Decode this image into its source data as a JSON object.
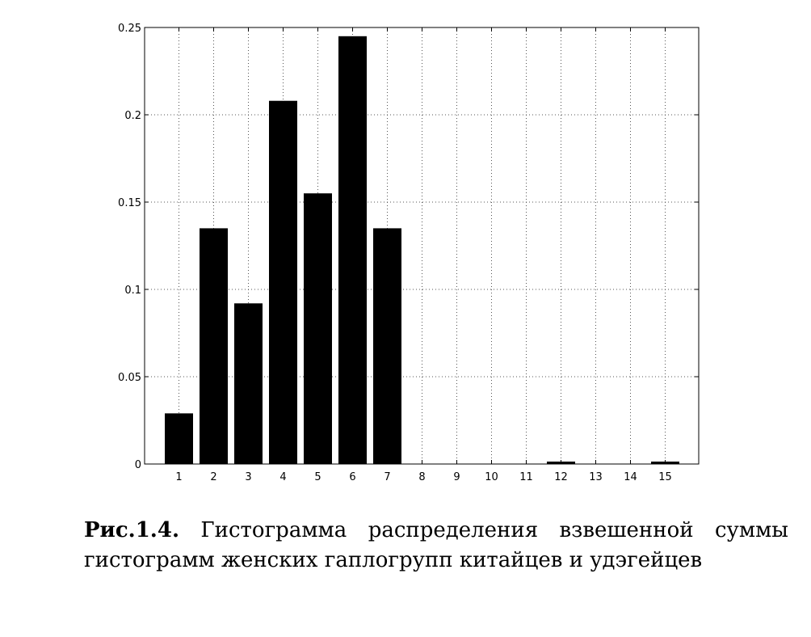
{
  "chart_data": {
    "type": "bar",
    "categories": [
      "1",
      "2",
      "3",
      "4",
      "5",
      "6",
      "7",
      "8",
      "9",
      "10",
      "11",
      "12",
      "13",
      "14",
      "15"
    ],
    "values": [
      0.029,
      0.135,
      0.092,
      0.208,
      0.155,
      0.245,
      0.135,
      0,
      0,
      0,
      0,
      0.001,
      0,
      0,
      0.001
    ],
    "yticks": [
      "0",
      "0.05",
      "0.1",
      "0.15",
      "0.2",
      "0.25"
    ],
    "ylim": [
      0,
      0.25
    ],
    "grid": true,
    "bar_color": "#000000",
    "grid_color": "#555555"
  },
  "caption": {
    "label": "Рис.1.4.",
    "line1_words": [
      "Гистограмма",
      "распределения",
      "взвешенной",
      "суммы"
    ],
    "line2": "гистограмм женских гаплогрупп китайцев и удэгейцев"
  }
}
